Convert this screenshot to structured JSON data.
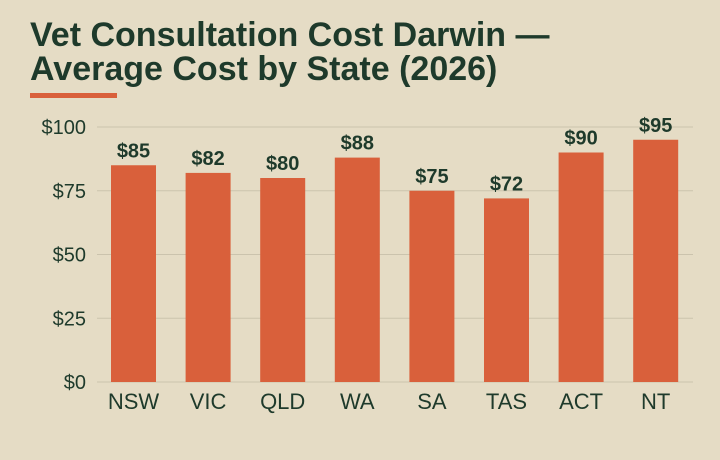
{
  "title_line1": "Vet Consultation Cost Darwin —",
  "title_line2": "Average Cost by State (2026)",
  "colors": {
    "background": "#e5dcc5",
    "bar": "#d9603b",
    "text": "#1e3a2b",
    "grid": "#cbc3ad"
  },
  "chart_data": {
    "type": "bar",
    "categories": [
      "NSW",
      "VIC",
      "QLD",
      "WA",
      "SA",
      "TAS",
      "ACT",
      "NT"
    ],
    "values": [
      85,
      82,
      80,
      88,
      75,
      72,
      90,
      95
    ],
    "value_labels": [
      "$85",
      "$82",
      "$80",
      "$88",
      "$75",
      "$72",
      "$90",
      "$95"
    ],
    "yticks": [
      0,
      25,
      50,
      75,
      100
    ],
    "ytick_labels": [
      "$0",
      "$25",
      "$50",
      "$75",
      "$100"
    ],
    "ylim": [
      0,
      100
    ],
    "grid": true,
    "legend": "none"
  }
}
